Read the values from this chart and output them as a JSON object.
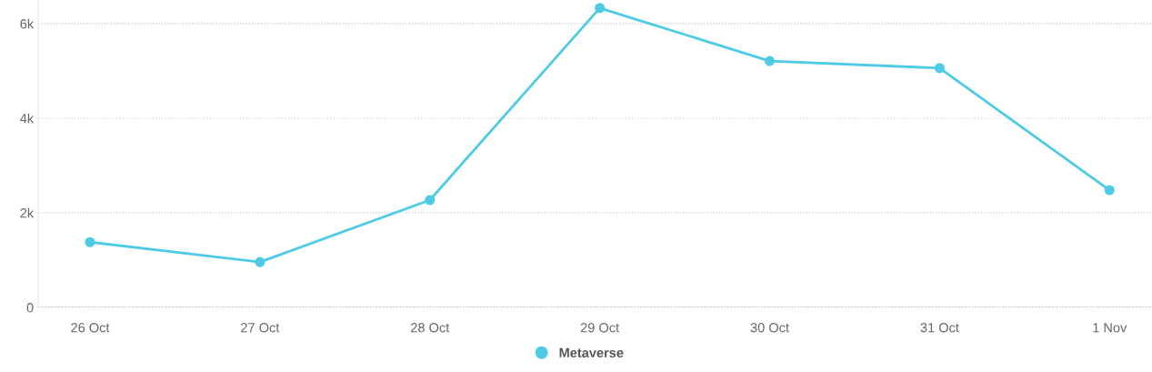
{
  "chart_data": {
    "type": "line",
    "categories": [
      "26 Oct",
      "27 Oct",
      "28 Oct",
      "29 Oct",
      "30 Oct",
      "31 Oct",
      "1 Nov"
    ],
    "series": [
      {
        "name": "Metaverse",
        "color": "#4dcbe6",
        "values": [
          1380,
          960,
          2270,
          6330,
          5210,
          5060,
          2480
        ]
      }
    ],
    "ylim": [
      0,
      6500
    ],
    "yticks": [
      0,
      {
        "value": 2000,
        "label": "2k"
      },
      {
        "value": 4000,
        "label": "4k"
      },
      {
        "value": 6000,
        "label": "6k"
      }
    ],
    "grid": "y",
    "legend": "bottom",
    "marker": "circle",
    "line_style": "solid"
  }
}
